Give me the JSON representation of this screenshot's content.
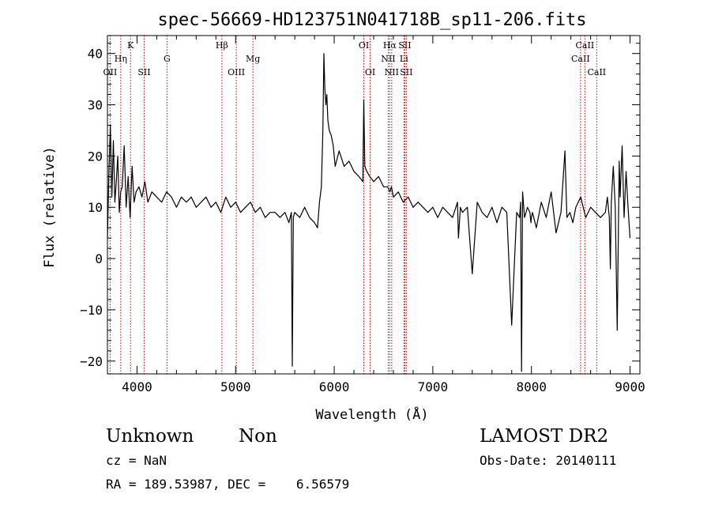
{
  "chart_data": {
    "type": "line",
    "title": "spec-56669-HD123751N041718B_sp11-206.fits",
    "xlabel": "Wavelength (Å)",
    "ylabel": "Flux (relative)",
    "xlim": [
      3700,
      9100
    ],
    "ylim": [
      -22.5,
      43.5
    ],
    "xticks": [
      4000,
      5000,
      6000,
      7000,
      8000,
      9000
    ],
    "xtick_labels": [
      "4000",
      "5000",
      "6000",
      "7000",
      "8000",
      "9000"
    ],
    "yticks": [
      -20,
      -10,
      0,
      10,
      20,
      30,
      40
    ],
    "ytick_labels": [
      "−20",
      "−10",
      "0",
      "10",
      "20",
      "30",
      "40"
    ],
    "grid": false,
    "series": [
      {
        "x": [
          3700,
          3715,
          3730,
          3745,
          3760,
          3775,
          3790,
          3805,
          3820,
          3835,
          3850,
          3870,
          3890,
          3910,
          3930,
          3950,
          3970,
          3990,
          4020,
          4050,
          4080,
          4110,
          4150,
          4200,
          4250,
          4300,
          4350,
          4400,
          4450,
          4500,
          4550,
          4600,
          4650,
          4700,
          4750,
          4800,
          4850,
          4900,
          4950,
          5000,
          5050,
          5100,
          5150,
          5200,
          5250,
          5300,
          5350,
          5400,
          5450,
          5500,
          5540,
          5565,
          5575,
          5585,
          5600,
          5650,
          5700,
          5750,
          5800,
          5830,
          5850,
          5870,
          5885,
          5895,
          5905,
          5915,
          5925,
          5935,
          5950,
          5970,
          5990,
          6010,
          6050,
          6100,
          6150,
          6200,
          6250,
          6290,
          6300,
          6310,
          6330,
          6360,
          6400,
          6450,
          6500,
          6540,
          6565,
          6580,
          6600,
          6650,
          6700,
          6750,
          6800,
          6850,
          6900,
          6950,
          7000,
          7050,
          7100,
          7150,
          7200,
          7250,
          7260,
          7280,
          7300,
          7350,
          7400,
          7450,
          7500,
          7550,
          7600,
          7650,
          7700,
          7750,
          7800,
          7850,
          7880,
          7890,
          7900,
          7910,
          7930,
          7960,
          7985,
          7995,
          8000,
          8010,
          8050,
          8100,
          8150,
          8200,
          8250,
          8300,
          8340,
          8360,
          8390,
          8420,
          8450,
          8500,
          8550,
          8600,
          8650,
          8700,
          8750,
          8770,
          8790,
          8800,
          8810,
          8830,
          8850,
          8870,
          8890,
          8900,
          8920,
          8940,
          8960,
          8980,
          9000
        ],
        "values": [
          4,
          17,
          26,
          12,
          23,
          11,
          15,
          20,
          9,
          13,
          14,
          22,
          10,
          16,
          8,
          18,
          11,
          13,
          14,
          12,
          15,
          11,
          13,
          12,
          11,
          13,
          12,
          10,
          12,
          11,
          12,
          10,
          11,
          12,
          10,
          11,
          9,
          12,
          10,
          11,
          9,
          10,
          11,
          9,
          10,
          8,
          9,
          9,
          8,
          9,
          7,
          9,
          -21,
          8,
          9,
          8,
          10,
          8,
          7,
          6,
          11,
          14,
          25,
          40,
          33,
          30,
          32,
          27,
          25,
          24,
          22,
          18,
          21,
          18,
          19,
          17,
          16,
          15,
          31,
          18,
          17,
          16,
          15,
          16,
          14,
          14,
          13,
          14,
          12,
          13,
          11,
          12,
          10,
          11,
          10,
          9,
          10,
          8,
          10,
          9,
          8,
          11,
          4,
          10,
          9,
          10,
          -3,
          11,
          9,
          8,
          10,
          7,
          10,
          9,
          -13,
          9,
          8,
          11,
          -22,
          13,
          8,
          10,
          9,
          7,
          8,
          9,
          6,
          11,
          8,
          13,
          5,
          9,
          21,
          8,
          9,
          7,
          10,
          12,
          8,
          10,
          9,
          8,
          9,
          12,
          8,
          -2,
          11,
          18,
          10,
          -14,
          19,
          12,
          22,
          8,
          17,
          10,
          4
        ]
      }
    ],
    "lines": [
      {
        "x": 3727,
        "label": "OII",
        "row": 3
      },
      {
        "x": 3835,
        "label": "Hη",
        "row": 2
      },
      {
        "x": 3934,
        "label": "K",
        "row": 1
      },
      {
        "x": 4072,
        "label": "SII",
        "row": 3
      },
      {
        "x": 4304,
        "label": "G",
        "row": 2
      },
      {
        "x": 4861,
        "label": "Hβ",
        "row": 1
      },
      {
        "x": 5007,
        "label": "OIII",
        "row": 3
      },
      {
        "x": 5175,
        "label": "Mg",
        "row": 2
      },
      {
        "x": 6300,
        "label": "OI",
        "row": 1
      },
      {
        "x": 6364,
        "label": "OI",
        "row": 3
      },
      {
        "x": 6548,
        "label": "NII",
        "row": 2
      },
      {
        "x": 6563,
        "label": "Hα",
        "row": 1
      },
      {
        "x": 6583,
        "label": "NII",
        "row": 3
      },
      {
        "x": 6707,
        "label": "Li",
        "row": 2
      },
      {
        "x": 6716,
        "label": "SII",
        "row": 1
      },
      {
        "x": 6731,
        "label": "SII",
        "row": 3
      },
      {
        "x": 8498,
        "label": "CaII",
        "row": 2
      },
      {
        "x": 8542,
        "label": "CaII",
        "row": 1
      },
      {
        "x": 8662,
        "label": "CaII",
        "row": 3
      }
    ]
  },
  "info": {
    "class": "Unknown",
    "subclass": "Non",
    "cz": "cz = NaN",
    "coords": "RA = 189.53987, DEC =    6.56579",
    "survey": "LAMOST DR2",
    "obs_date": "Obs-Date: 20140111"
  }
}
